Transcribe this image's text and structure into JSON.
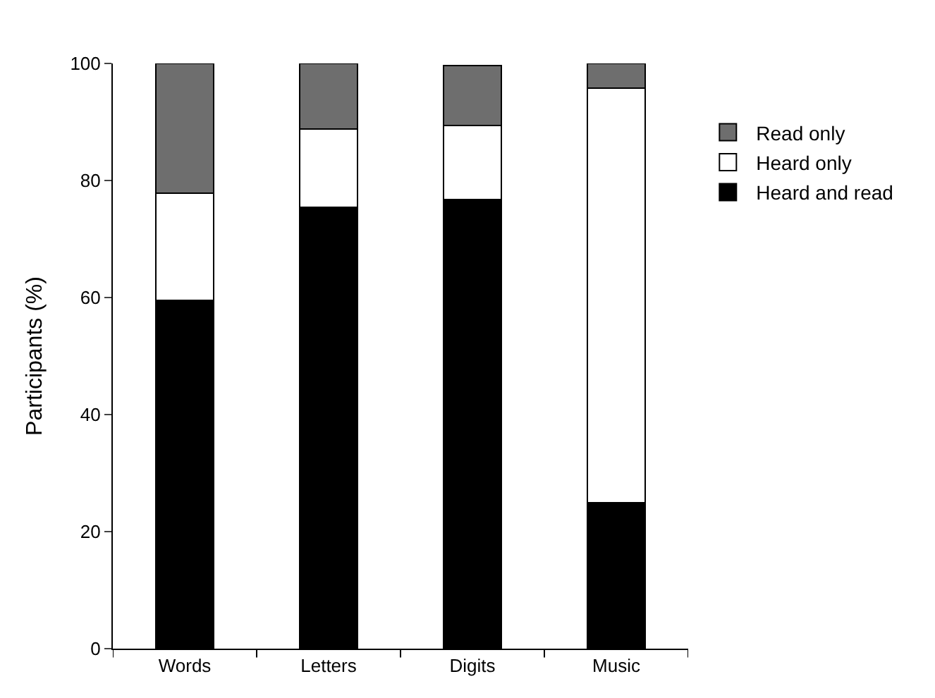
{
  "chart_data": {
    "type": "bar",
    "stacked": true,
    "ylabel": "Participants (%)",
    "categories": [
      "Words",
      "Letters",
      "Digits",
      "Music"
    ],
    "series": [
      {
        "name": "Heard and read",
        "color": "#000000",
        "values": [
          59.5,
          75.4,
          76.7,
          25.0
        ]
      },
      {
        "name": "Heard only",
        "color": "#ffffff",
        "values": [
          18.3,
          13.4,
          12.7,
          70.8
        ]
      },
      {
        "name": "Read only",
        "color": "#6e6e6e",
        "values": [
          22.2,
          11.2,
          10.3,
          4.2
        ]
      }
    ],
    "ylim": [
      0,
      100
    ],
    "yticks": [
      0,
      20,
      40,
      60,
      80,
      100
    ],
    "legend": "right"
  }
}
